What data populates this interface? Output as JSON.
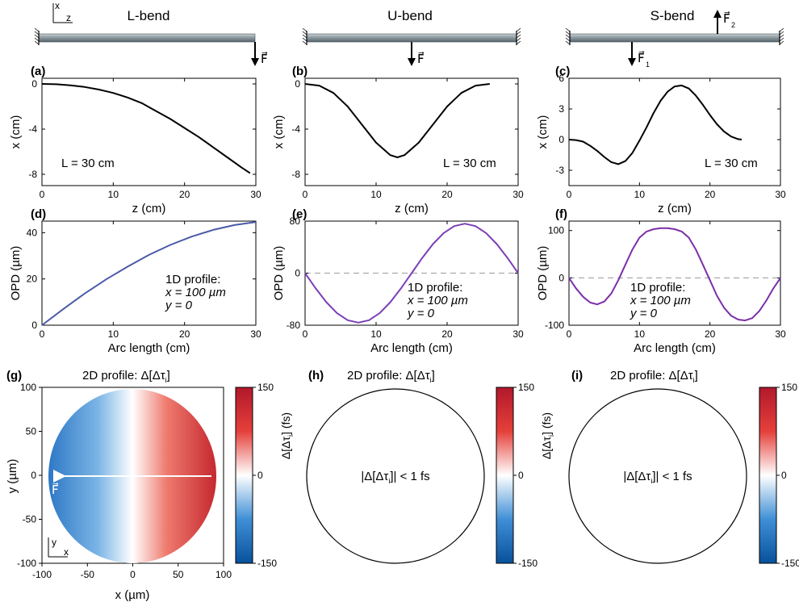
{
  "header": {
    "axes_x": "x",
    "axes_z": "z",
    "titles": [
      "L-bend",
      "U-bend",
      "S-bend"
    ],
    "force": "F⃗",
    "force1": "F⃗",
    "force1_sub": "1",
    "force2": "F⃗",
    "force2_sub": "2"
  },
  "panels": {
    "a": {
      "label": "(a)",
      "note": "L = 30 cm",
      "xlabel": "z (cm)",
      "ylabel": "x (cm)",
      "xticks": [
        "0",
        "10",
        "20",
        "30"
      ],
      "yticks": [
        "0",
        "-4",
        "-8"
      ]
    },
    "b": {
      "label": "(b)",
      "note": "L = 30 cm",
      "xlabel": "z (cm)",
      "ylabel": "x (cm)",
      "xticks": [
        "0",
        "10",
        "20",
        "30"
      ],
      "yticks": [
        "0",
        "-4",
        "-8"
      ]
    },
    "c": {
      "label": "(c)",
      "note": "L = 30 cm",
      "xlabel": "z (cm)",
      "ylabel": "x (cm)",
      "xticks": [
        "0",
        "10",
        "20",
        "30"
      ],
      "yticks": [
        "6",
        "3",
        "0",
        "-3"
      ]
    },
    "d": {
      "label": "(d)",
      "xlabel": "Arc length (cm)",
      "ylabel": "OPD (µm)",
      "xticks": [
        "0",
        "10",
        "20",
        "30"
      ],
      "yticks": [
        "40",
        "20",
        "0"
      ],
      "note1": "1D profile:",
      "note2": "x = 100 µm",
      "note3": "y = 0"
    },
    "e": {
      "label": "(e)",
      "xlabel": "Arc length (cm)",
      "ylabel": "OPD (µm)",
      "xticks": [
        "0",
        "10",
        "20",
        "30"
      ],
      "yticks": [
        "80",
        "0",
        "-80"
      ],
      "note1": "1D profile:",
      "note2": "x = 100 µm",
      "note3": "y = 0"
    },
    "f": {
      "label": "(f)",
      "xlabel": "Arc length (cm)",
      "ylabel": "OPD (µm)",
      "xticks": [
        "0",
        "10",
        "20",
        "30"
      ],
      "yticks": [
        "100",
        "0",
        "-100"
      ],
      "note1": "1D profile:",
      "note2": "x = 100 µm",
      "note3": "y = 0"
    },
    "g": {
      "label": "(g)",
      "title": "2D profile: Δ[Δτ",
      "title_sub": "i",
      "title_end": "]",
      "xlabel": "x (µm)",
      "ylabel": "y (µm)",
      "xticks": [
        "-100",
        "-50",
        "0",
        "50",
        "100"
      ],
      "yticks": [
        "100",
        "50",
        "0",
        "-50",
        "-100"
      ],
      "force": "F⃗",
      "ax_y": "y",
      "ax_x": "x"
    },
    "h": {
      "label": "(h)",
      "title": "2D profile: Δ[Δτ",
      "title_sub": "i",
      "title_end": "]",
      "center": "|Δ[Δτ",
      "center_sub": "i",
      "center_end": "]| < 1 fs"
    },
    "i": {
      "label": "(i)",
      "title": "2D profile: Δ[Δτ",
      "title_sub": "i",
      "title_end": "]",
      "center": "|Δ[Δτ",
      "center_sub": "i",
      "center_end": "]| < 1 fs"
    }
  },
  "colorbar": {
    "ticks": [
      "150",
      "0",
      "-150"
    ],
    "label": "Δ[Δτ",
    "label_sub": "i",
    "label_end": "] (fs)",
    "color_max": "#b2182b",
    "color_mid": "#ffffff",
    "color_min": "#08519c"
  },
  "chart_data": [
    {
      "panel": "a",
      "type": "line",
      "xlabel": "z (cm)",
      "ylabel": "x (cm)",
      "xlim": [
        0,
        30
      ],
      "ylim": [
        -9,
        0.5
      ],
      "series": [
        {
          "x": [
            0,
            2,
            4,
            6,
            8,
            10,
            12,
            14,
            16,
            18,
            20,
            22,
            24,
            26,
            28,
            29.2
          ],
          "y": [
            0,
            -0.03,
            -0.12,
            -0.27,
            -0.5,
            -0.8,
            -1.2,
            -1.7,
            -2.4,
            -3.1,
            -3.9,
            -4.7,
            -5.6,
            -6.5,
            -7.4,
            -7.9
          ]
        }
      ],
      "line_color": "#000000"
    },
    {
      "panel": "b",
      "type": "line",
      "xlabel": "z (cm)",
      "ylabel": "x (cm)",
      "xlim": [
        0,
        30
      ],
      "ylim": [
        -9,
        0.5
      ],
      "series": [
        {
          "x": [
            0,
            2,
            4,
            6,
            8,
            10,
            12,
            13,
            14,
            16,
            18,
            20,
            22,
            24,
            26
          ],
          "y": [
            0,
            -0.15,
            -0.8,
            -2.0,
            -3.6,
            -5.2,
            -6.3,
            -6.5,
            -6.3,
            -5.2,
            -3.6,
            -2.0,
            -0.8,
            -0.15,
            0
          ]
        }
      ],
      "line_color": "#000000"
    },
    {
      "panel": "c",
      "type": "line",
      "xlabel": "z (cm)",
      "ylabel": "x (cm)",
      "xlim": [
        0,
        30
      ],
      "ylim": [
        -4.5,
        6
      ],
      "series": [
        {
          "x": [
            0,
            1,
            2,
            3,
            4,
            5,
            6,
            7,
            8,
            9,
            10,
            11,
            12,
            13,
            14,
            15,
            16,
            17,
            18,
            19,
            20,
            21,
            22,
            23,
            24,
            24.5
          ],
          "y": [
            0,
            -0.05,
            -0.2,
            -0.6,
            -1.1,
            -1.7,
            -2.2,
            -2.4,
            -2.1,
            -1.3,
            -0.1,
            1.2,
            2.6,
            3.8,
            4.7,
            5.2,
            5.3,
            5.0,
            4.3,
            3.4,
            2.4,
            1.5,
            0.8,
            0.3,
            0.05,
            0
          ]
        }
      ],
      "line_color": "#000000"
    },
    {
      "panel": "d",
      "type": "line",
      "xlabel": "Arc length (cm)",
      "ylabel": "OPD (µm)",
      "xlim": [
        0,
        30
      ],
      "ylim": [
        0,
        45
      ],
      "series": [
        {
          "x": [
            0,
            3,
            6,
            9,
            12,
            15,
            18,
            21,
            24,
            27,
            30
          ],
          "y": [
            0,
            7.0,
            13.7,
            19.8,
            25.3,
            30.4,
            34.7,
            38.3,
            41.2,
            43.3,
            44.6
          ]
        }
      ],
      "line_color": "#4a5aa8"
    },
    {
      "panel": "e",
      "type": "line",
      "xlabel": "Arc length (cm)",
      "ylabel": "OPD (µm)",
      "xlim": [
        0,
        30
      ],
      "ylim": [
        -80,
        80
      ],
      "series": [
        {
          "x": [
            0,
            1.5,
            3,
            4.5,
            6,
            7.5,
            9,
            10.5,
            12,
            13.5,
            15,
            16.5,
            18,
            19.5,
            21,
            22.5,
            24,
            25.5,
            27,
            28.5,
            30
          ],
          "y": [
            0,
            -23.5,
            -44.7,
            -61.5,
            -72.3,
            -76,
            -72.3,
            -61.5,
            -44.7,
            -23.5,
            0,
            23.5,
            44.7,
            61.5,
            72.3,
            76,
            72.3,
            61.5,
            44.7,
            23.5,
            0
          ]
        }
      ],
      "line_color": "#7b3fb5"
    },
    {
      "panel": "f",
      "type": "line",
      "xlabel": "Arc length (cm)",
      "ylabel": "OPD (µm)",
      "xlim": [
        0,
        30
      ],
      "ylim": [
        -100,
        120
      ],
      "series": [
        {
          "x": [
            0,
            1,
            2,
            3,
            4,
            5,
            6,
            7,
            8,
            9,
            10,
            11,
            12,
            13,
            14,
            15,
            16,
            17,
            18,
            19,
            20,
            21,
            22,
            23,
            24,
            25,
            26,
            27,
            28,
            29,
            30
          ],
          "y": [
            0,
            -22,
            -40,
            -52,
            -56,
            -50,
            -33,
            -5,
            28,
            60,
            85,
            98,
            103,
            105,
            105,
            103,
            98,
            85,
            60,
            28,
            -5,
            -38,
            -63,
            -80,
            -88,
            -90,
            -85,
            -70,
            -48,
            -22,
            0
          ]
        }
      ],
      "line_color": "#7b2fa8"
    }
  ]
}
